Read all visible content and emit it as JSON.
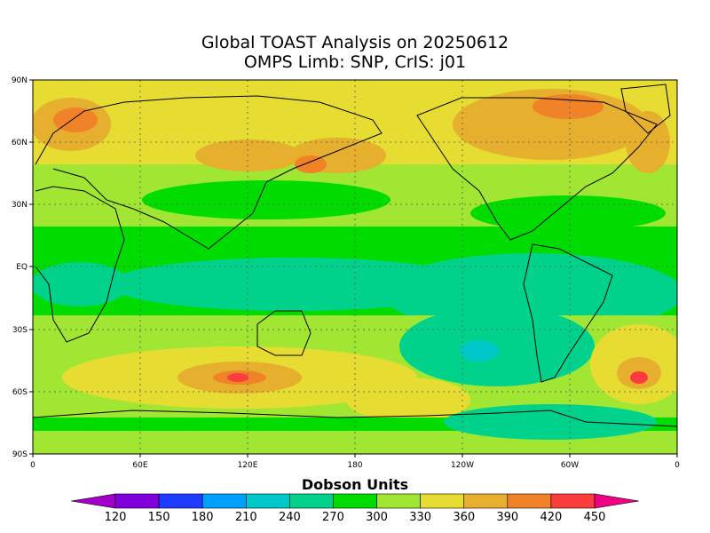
{
  "title": {
    "line1": "Global TOAST Analysis on 20250612",
    "line2": "OMPS Limb: SNP,  CrIS: j01"
  },
  "axes": {
    "lat_labels": [
      "90N",
      "60N",
      "30N",
      "EQ",
      "30S",
      "60S",
      "90S"
    ],
    "lon_labels": [
      "0",
      "60E",
      "120E",
      "180",
      "120W",
      "60W",
      "0"
    ]
  },
  "colorbar": {
    "title": "Dobson Units",
    "ticks": [
      "120",
      "150",
      "180",
      "210",
      "240",
      "270",
      "300",
      "330",
      "360",
      "390",
      "420",
      "450"
    ],
    "colors": [
      "#a000c8",
      "#8200dc",
      "#1e3cff",
      "#00a0ff",
      "#00c8c8",
      "#00d28c",
      "#00dc00",
      "#a0e632",
      "#e6dc32",
      "#e6af2d",
      "#f08228",
      "#fa3c3c",
      "#f00082"
    ]
  },
  "map_colors": {
    "c300_330": "#a0e632",
    "c270_300": "#00dc00",
    "c240_270": "#00d28c",
    "c210_240": "#00c8c8",
    "c330_360": "#e6dc32",
    "c360_390": "#e6af2d",
    "c390_420": "#f08228",
    "c420_450": "#fa3c3c"
  }
}
